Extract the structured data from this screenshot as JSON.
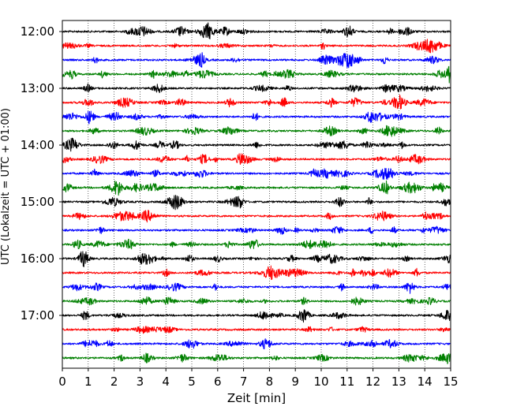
{
  "chart_data": {
    "type": "line",
    "title": "",
    "xlabel": "Zeit  [min]",
    "ylabel": "UTC (Lokalzeit = UTC + 01:00)",
    "xlim": [
      0,
      15
    ],
    "x_ticks": [
      0,
      1,
      2,
      3,
      4,
      5,
      6,
      7,
      8,
      9,
      10,
      11,
      12,
      13,
      14,
      15
    ],
    "x_tick_labels": [
      "0",
      "1",
      "2",
      "3",
      "4",
      "5",
      "6",
      "7",
      "8",
      "9",
      "10",
      "11",
      "12",
      "13",
      "14",
      "15"
    ],
    "y_tick_labels": [
      "12:00",
      "13:00",
      "14:00",
      "15:00",
      "16:00",
      "17:00"
    ],
    "grid": "vertical dotted at each minute",
    "legend": "none",
    "trace_colors": [
      "#000000",
      "#ff0000",
      "#0000ff",
      "#008000"
    ],
    "traces": [
      {
        "start": "12:00",
        "color": "#000000"
      },
      {
        "start": "12:15",
        "color": "#ff0000"
      },
      {
        "start": "12:30",
        "color": "#0000ff"
      },
      {
        "start": "12:45",
        "color": "#008000"
      },
      {
        "start": "13:00",
        "color": "#000000"
      },
      {
        "start": "13:15",
        "color": "#ff0000"
      },
      {
        "start": "13:30",
        "color": "#0000ff"
      },
      {
        "start": "13:45",
        "color": "#008000"
      },
      {
        "start": "14:00",
        "color": "#000000"
      },
      {
        "start": "14:15",
        "color": "#ff0000"
      },
      {
        "start": "14:30",
        "color": "#0000ff"
      },
      {
        "start": "14:45",
        "color": "#008000"
      },
      {
        "start": "15:00",
        "color": "#000000"
      },
      {
        "start": "15:15",
        "color": "#ff0000"
      },
      {
        "start": "15:30",
        "color": "#0000ff"
      },
      {
        "start": "15:45",
        "color": "#008000"
      },
      {
        "start": "16:00",
        "color": "#000000"
      },
      {
        "start": "16:15",
        "color": "#ff0000"
      },
      {
        "start": "16:30",
        "color": "#0000ff"
      },
      {
        "start": "16:45",
        "color": "#008000"
      },
      {
        "start": "17:00",
        "color": "#000000"
      },
      {
        "start": "17:15",
        "color": "#ff0000"
      },
      {
        "start": "17:30",
        "color": "#0000ff"
      },
      {
        "start": "17:45",
        "color": "#008000"
      }
    ]
  }
}
